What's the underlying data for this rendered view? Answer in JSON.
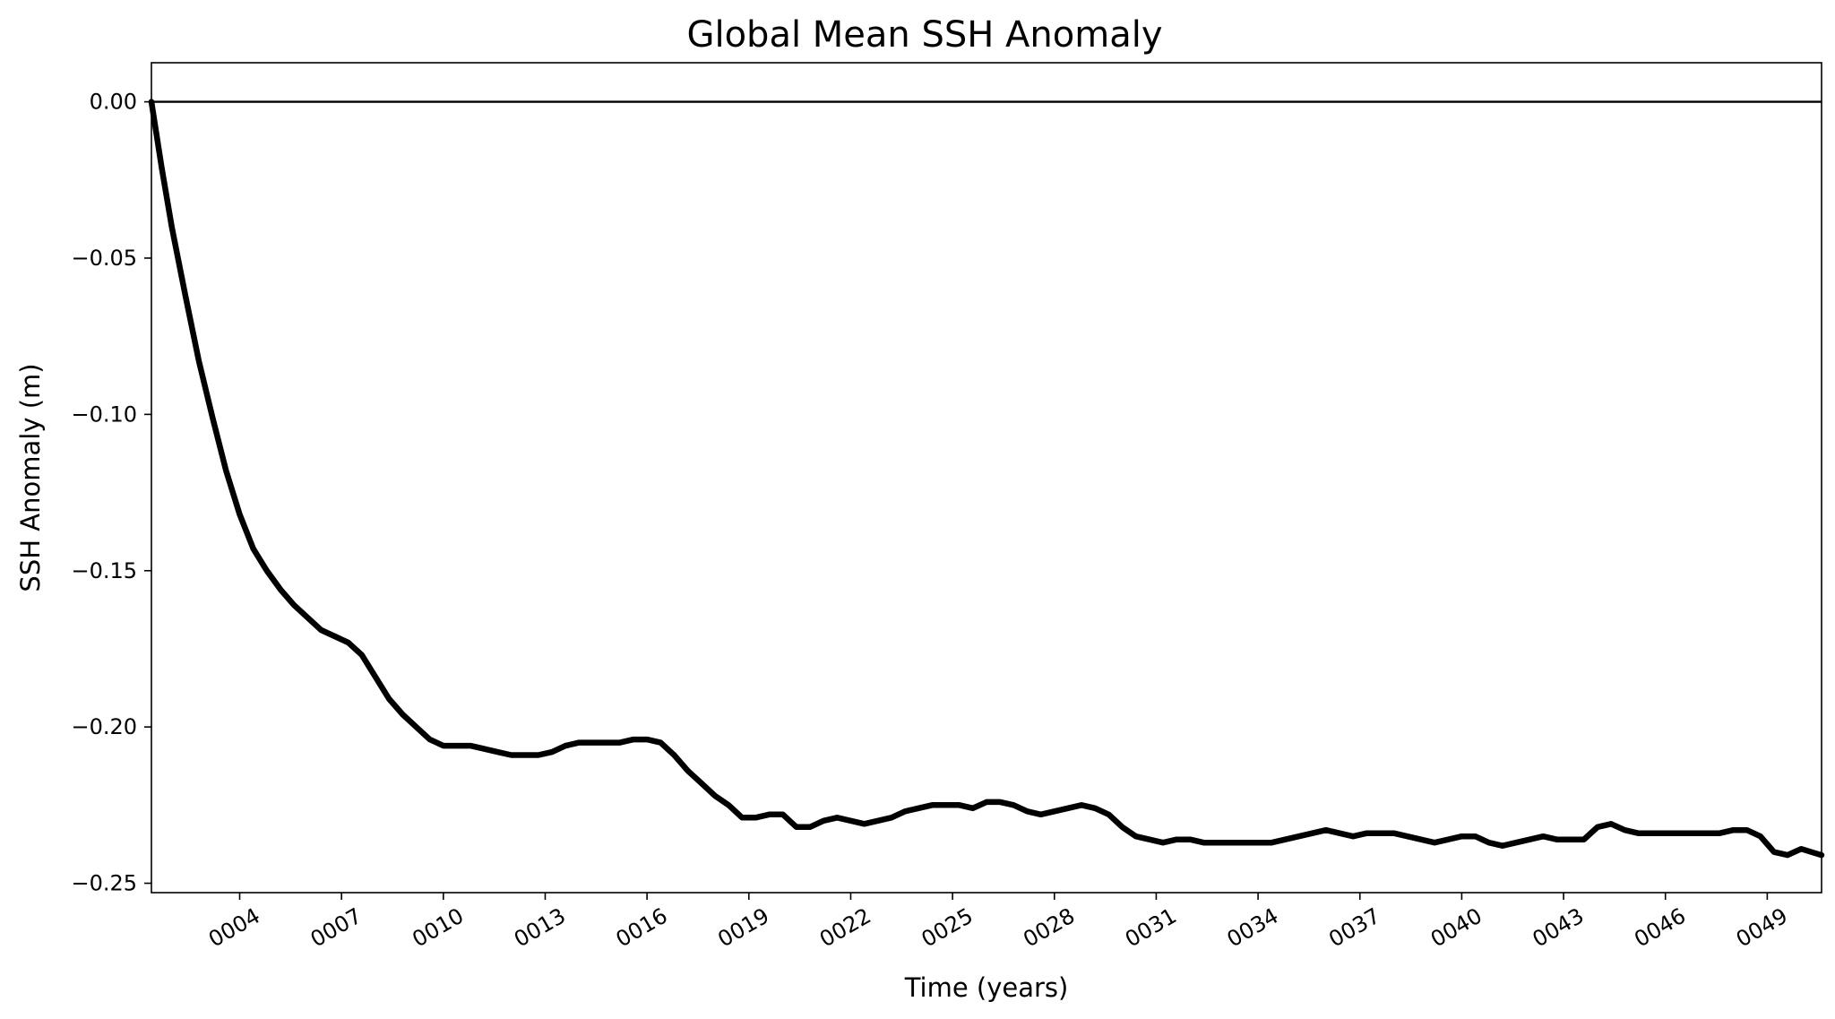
{
  "chart_data": {
    "type": "line",
    "title": "Global Mean SSH Anomaly",
    "xlabel": "Time (years)",
    "ylabel": "SSH Anomaly (m)",
    "xlim": [
      1.4,
      50.6
    ],
    "ylim": [
      -0.253,
      0.0125
    ],
    "x_ticks": [
      4,
      7,
      10,
      13,
      16,
      19,
      22,
      25,
      28,
      31,
      34,
      37,
      40,
      43,
      46,
      49
    ],
    "x_tick_labels": [
      "0004",
      "0007",
      "0010",
      "0013",
      "0016",
      "0019",
      "0022",
      "0025",
      "0028",
      "0031",
      "0034",
      "0037",
      "0040",
      "0043",
      "0046",
      "0049"
    ],
    "y_ticks": [
      0.0,
      -0.05,
      -0.1,
      -0.15,
      -0.2,
      -0.25
    ],
    "y_tick_labels": [
      "0.00",
      "−0.05",
      "−0.10",
      "−0.15",
      "−0.20",
      "−0.25"
    ],
    "reference_line_y": 0.0,
    "grid": false,
    "line_color": "#000000",
    "series": [
      {
        "x": [
          1.4,
          1.7,
          2.0,
          2.4,
          2.8,
          3.2,
          3.6,
          4.0,
          4.4,
          4.8,
          5.2,
          5.6,
          6.0,
          6.4,
          6.8,
          7.2,
          7.6,
          8.0,
          8.4,
          8.8,
          9.2,
          9.6,
          10.0,
          10.4,
          10.8,
          11.2,
          11.6,
          12.0,
          12.4,
          12.8,
          13.2,
          13.6,
          14.0,
          14.4,
          14.8,
          15.2,
          15.6,
          16.0,
          16.4,
          16.8,
          17.2,
          17.6,
          18.0,
          18.4,
          18.8,
          19.2,
          19.6,
          20.0,
          20.4,
          20.8,
          21.2,
          21.6,
          22.0,
          22.4,
          22.8,
          23.2,
          23.6,
          24.0,
          24.4,
          24.8,
          25.2,
          25.6,
          26.0,
          26.4,
          26.8,
          27.2,
          27.6,
          28.0,
          28.4,
          28.8,
          29.2,
          29.6,
          30.0,
          30.4,
          30.8,
          31.2,
          31.6,
          32.0,
          32.4,
          32.8,
          33.2,
          33.6,
          34.0,
          34.4,
          34.8,
          35.2,
          35.6,
          36.0,
          36.4,
          36.8,
          37.2,
          37.6,
          38.0,
          38.4,
          38.8,
          39.2,
          39.6,
          40.0,
          40.4,
          40.8,
          41.2,
          41.6,
          42.0,
          42.4,
          42.8,
          43.2,
          43.6,
          44.0,
          44.4,
          44.8,
          45.2,
          45.6,
          46.0,
          46.4,
          46.8,
          47.2,
          47.6,
          48.0,
          48.4,
          48.8,
          49.2,
          49.6,
          50.0,
          50.3,
          50.6
        ],
        "y": [
          0.0,
          -0.021,
          -0.04,
          -0.062,
          -0.083,
          -0.101,
          -0.118,
          -0.132,
          -0.143,
          -0.15,
          -0.156,
          -0.161,
          -0.165,
          -0.169,
          -0.171,
          -0.173,
          -0.177,
          -0.184,
          -0.191,
          -0.196,
          -0.2,
          -0.204,
          -0.206,
          -0.206,
          -0.206,
          -0.207,
          -0.208,
          -0.209,
          -0.209,
          -0.209,
          -0.208,
          -0.206,
          -0.205,
          -0.205,
          -0.205,
          -0.205,
          -0.204,
          -0.204,
          -0.205,
          -0.209,
          -0.214,
          -0.218,
          -0.222,
          -0.225,
          -0.229,
          -0.229,
          -0.228,
          -0.228,
          -0.232,
          -0.232,
          -0.23,
          -0.229,
          -0.23,
          -0.231,
          -0.23,
          -0.229,
          -0.227,
          -0.226,
          -0.225,
          -0.225,
          -0.225,
          -0.226,
          -0.224,
          -0.224,
          -0.225,
          -0.227,
          -0.228,
          -0.227,
          -0.226,
          -0.225,
          -0.226,
          -0.228,
          -0.232,
          -0.235,
          -0.236,
          -0.237,
          -0.236,
          -0.236,
          -0.237,
          -0.237,
          -0.237,
          -0.237,
          -0.237,
          -0.237,
          -0.236,
          -0.235,
          -0.234,
          -0.233,
          -0.234,
          -0.235,
          -0.234,
          -0.234,
          -0.234,
          -0.235,
          -0.236,
          -0.237,
          -0.236,
          -0.235,
          -0.235,
          -0.237,
          -0.238,
          -0.237,
          -0.236,
          -0.235,
          -0.236,
          -0.236,
          -0.236,
          -0.232,
          -0.231,
          -0.233,
          -0.234,
          -0.234,
          -0.234,
          -0.234,
          -0.234,
          -0.234,
          -0.234,
          -0.233,
          -0.233,
          -0.235,
          -0.24,
          -0.241,
          -0.239,
          -0.24,
          -0.241
        ]
      }
    ]
  }
}
